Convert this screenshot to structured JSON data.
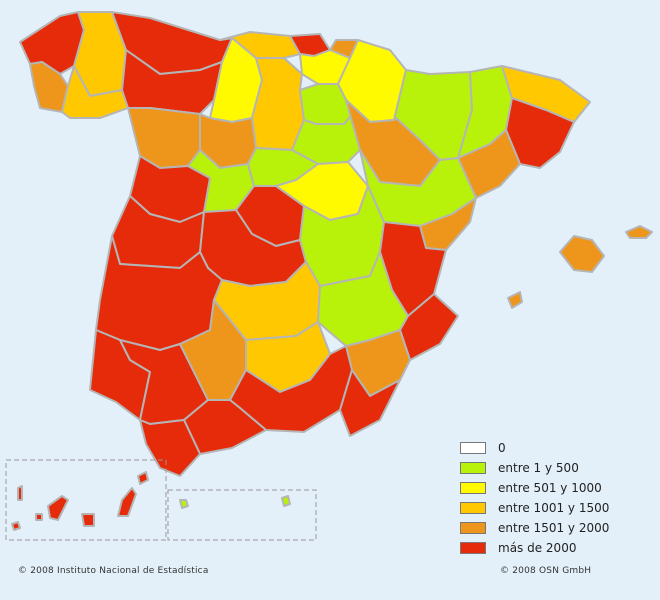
{
  "legend": {
    "items": [
      {
        "label": "0",
        "color": "#ffffff"
      },
      {
        "label": "entre 1 y 500",
        "color": "#b8f20a"
      },
      {
        "label": "entre 501 y 1000",
        "color": "#fffa00"
      },
      {
        "label": "entre 1001 y 1500",
        "color": "#ffc800"
      },
      {
        "label": "entre 1501 y 2000",
        "color": "#ee961c"
      },
      {
        "label": "más de 2000",
        "color": "#e52b0a"
      }
    ]
  },
  "credits": {
    "left": "© 2008 Instituto Nacional de Estadística",
    "right": "© 2008 OSN GmbH"
  },
  "colors": {
    "background": "#e3f0f9",
    "border": "#b5b5b5",
    "inset_frame": "#999999"
  }
}
